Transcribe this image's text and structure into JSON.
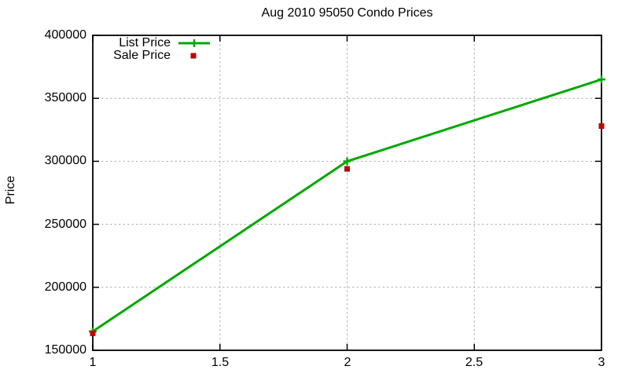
{
  "title": "Aug 2010 95050 Condo Prices",
  "colors": {
    "list_price": "#00a800",
    "sale_price": "#c00000",
    "grid": "#b0b0b0",
    "axis": "#000000",
    "background": "#ffffff"
  },
  "chart_data": {
    "type": "line",
    "title": "Aug 2010 95050 Condo Prices",
    "xlabel": "",
    "ylabel": "Price",
    "x": [
      1,
      2,
      3
    ],
    "series": [
      {
        "name": "List Price",
        "style": "line-with-plus-markers",
        "color": "#00a800",
        "values": [
          165000,
          300000,
          365000
        ]
      },
      {
        "name": "Sale Price",
        "style": "squares-only",
        "color": "#c00000",
        "values": [
          163500,
          294000,
          328000
        ]
      }
    ],
    "xlim": [
      1,
      3
    ],
    "ylim": [
      150000,
      400000
    ],
    "xticks": [
      1,
      1.5,
      2,
      2.5,
      3
    ],
    "xtick_labels": [
      "1",
      "1.5",
      "2",
      "2.5",
      "3"
    ],
    "yticks": [
      150000,
      200000,
      250000,
      300000,
      350000,
      400000
    ],
    "ytick_labels": [
      "150000",
      "200000",
      "250000",
      "300000",
      "350000",
      "400000"
    ],
    "grid": true,
    "grid_style": "dashed",
    "legend_position": "top-left-inside",
    "tick_direction": "inward-mirrored"
  },
  "legend": {
    "items": [
      {
        "label": "List Price",
        "swatch": "green-line-plus-marker"
      },
      {
        "label": "Sale Price",
        "swatch": "red-square"
      }
    ]
  }
}
